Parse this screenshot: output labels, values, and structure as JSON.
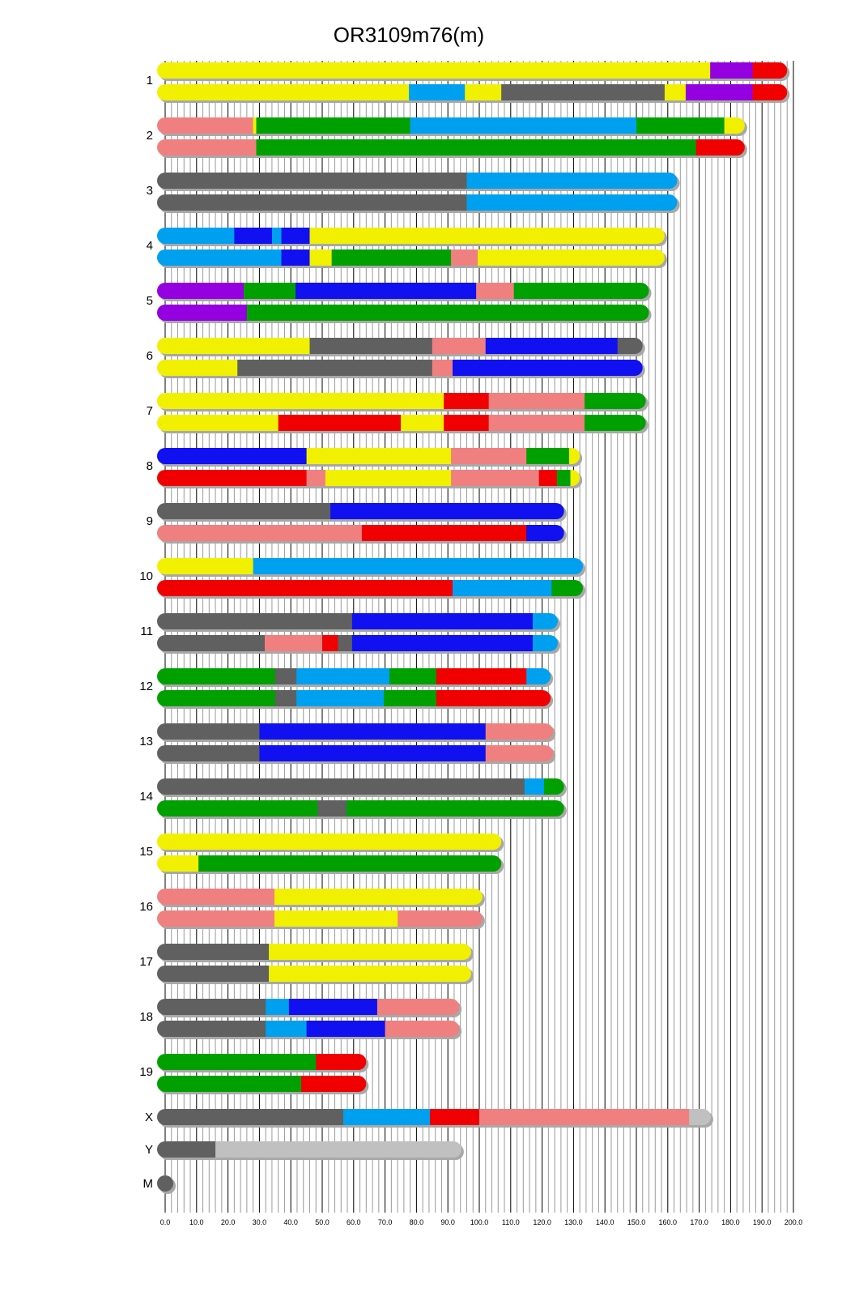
{
  "chart_data": {
    "type": "diagram",
    "title": "OR3109m76(m)",
    "xlim": [
      0,
      200
    ],
    "tick_step": 10,
    "tick_labels": [
      "0.0",
      "10.0",
      "20.0",
      "30.0",
      "40.0",
      "50.0",
      "60.0",
      "70.0",
      "80.0",
      "90.0",
      "100.0",
      "110.0",
      "120.0",
      "130.0",
      "140.0",
      "150.0",
      "160.0",
      "170.0",
      "180.0",
      "190.0",
      "200.0"
    ],
    "colors": {
      "Y": "#f0f000",
      "P": "#9400e0",
      "R": "#f00000",
      "B": "#00a0f0",
      "G": "#606060",
      "N": "#00a000",
      "K": "#f08080",
      "D": "#1010f0",
      "L": "#c0c0c0"
    },
    "chromosomes": [
      {
        "name": "1",
        "homologs": [
          [
            [
              "Y",
              173.5
            ],
            [
              "P",
              187
            ],
            [
              "R",
              198
            ]
          ],
          [
            [
              "Y",
              77.6
            ],
            [
              "B",
              95.4
            ],
            [
              "Y",
              107
            ],
            [
              "G",
              159
            ],
            [
              "Y",
              165.7
            ],
            [
              "P",
              187
            ],
            [
              "R",
              198
            ]
          ]
        ]
      },
      {
        "name": "2",
        "homologs": [
          [
            [
              "K",
              28
            ],
            [
              "Y",
              29
            ],
            [
              "N",
              78
            ],
            [
              "B",
              150
            ],
            [
              "N",
              178
            ],
            [
              "Y",
              184.5
            ]
          ],
          [
            [
              "K",
              29
            ],
            [
              "N",
              169
            ],
            [
              "R",
              184.5
            ]
          ]
        ]
      },
      {
        "name": "3",
        "homologs": [
          [
            [
              "G",
              96
            ],
            [
              "B",
              163
            ]
          ],
          [
            [
              "G",
              96
            ],
            [
              "B",
              163
            ]
          ]
        ]
      },
      {
        "name": "4",
        "homologs": [
          [
            [
              "B",
              22
            ],
            [
              "D",
              34
            ],
            [
              "B",
              37
            ],
            [
              "D",
              46
            ],
            [
              "Y",
              159
            ]
          ],
          [
            [
              "B",
              37
            ],
            [
              "D",
              46
            ],
            [
              "Y",
              53
            ],
            [
              "N",
              91
            ],
            [
              "K",
              99.5
            ],
            [
              "Y",
              159
            ]
          ]
        ]
      },
      {
        "name": "5",
        "homologs": [
          [
            [
              "P",
              25
            ],
            [
              "N",
              41.5
            ],
            [
              "D",
              99
            ],
            [
              "K",
              111
            ],
            [
              "N",
              154
            ]
          ],
          [
            [
              "P",
              26
            ],
            [
              "N",
              154
            ]
          ]
        ]
      },
      {
        "name": "6",
        "homologs": [
          [
            [
              "Y",
              46
            ],
            [
              "G",
              85
            ],
            [
              "K",
              102
            ],
            [
              "D",
              144
            ],
            [
              "G",
              152
            ]
          ],
          [
            [
              "Y",
              23
            ],
            [
              "G",
              85
            ],
            [
              "K",
              91.5
            ],
            [
              "D",
              152
            ]
          ]
        ]
      },
      {
        "name": "7",
        "homologs": [
          [
            [
              "Y",
              88.7
            ],
            [
              "R",
              103
            ],
            [
              "K",
              133.5
            ],
            [
              "N",
              153
            ]
          ],
          [
            [
              "Y",
              36
            ],
            [
              "R",
              75
            ],
            [
              "Y",
              88.7
            ],
            [
              "R",
              103
            ],
            [
              "K",
              133.5
            ],
            [
              "N",
              153
            ]
          ]
        ]
      },
      {
        "name": "8",
        "homologs": [
          [
            [
              "D",
              45
            ],
            [
              "Y",
              91
            ],
            [
              "K",
              115
            ],
            [
              "N",
              128.6
            ],
            [
              "Y",
              132
            ]
          ],
          [
            [
              "R",
              45
            ],
            [
              "K",
              51
            ],
            [
              "Y",
              91
            ],
            [
              "K",
              119
            ],
            [
              "R",
              124.7
            ],
            [
              "N",
              129
            ],
            [
              "Y",
              132
            ]
          ]
        ]
      },
      {
        "name": "9",
        "homologs": [
          [
            [
              "G",
              52.6
            ],
            [
              "D",
              127
            ]
          ],
          [
            [
              "K",
              62.6
            ],
            [
              "R",
              115
            ],
            [
              "D",
              127
            ]
          ]
        ]
      },
      {
        "name": "10",
        "homologs": [
          [
            [
              "Y",
              28
            ],
            [
              "B",
              133
            ]
          ],
          [
            [
              "R",
              91.5
            ],
            [
              "B",
              123
            ],
            [
              "N",
              133
            ]
          ]
        ]
      },
      {
        "name": "11",
        "homologs": [
          [
            [
              "G",
              59.5
            ],
            [
              "D",
              117
            ],
            [
              "B",
              125
            ]
          ],
          [
            [
              "G",
              31.7
            ],
            [
              "K",
              50
            ],
            [
              "R",
              55
            ],
            [
              "G",
              59.5
            ],
            [
              "D",
              117
            ],
            [
              "B",
              125
            ]
          ]
        ]
      },
      {
        "name": "12",
        "homologs": [
          [
            [
              "N",
              35
            ],
            [
              "G",
              41.8
            ],
            [
              "B",
              71.4
            ],
            [
              "N",
              86.3
            ],
            [
              "R",
              115
            ],
            [
              "B",
              122.7
            ]
          ],
          [
            [
              "N",
              35
            ],
            [
              "G",
              41.8
            ],
            [
              "B",
              69.6
            ],
            [
              "N",
              86.3
            ],
            [
              "R",
              122.7
            ]
          ]
        ]
      },
      {
        "name": "13",
        "homologs": [
          [
            [
              "G",
              30
            ],
            [
              "D",
              102
            ],
            [
              "K",
              123.5
            ]
          ],
          [
            [
              "G",
              30
            ],
            [
              "D",
              102
            ],
            [
              "K",
              123.5
            ]
          ]
        ]
      },
      {
        "name": "14",
        "homologs": [
          [
            [
              "G",
              114.4
            ],
            [
              "B",
              120.6
            ],
            [
              "N",
              127
            ]
          ],
          [
            [
              "N",
              48.5
            ],
            [
              "G",
              57.7
            ],
            [
              "N",
              127
            ]
          ]
        ]
      },
      {
        "name": "15",
        "homologs": [
          [
            [
              "Y",
              107
            ]
          ],
          [
            [
              "Y",
              10.6
            ],
            [
              "N",
              107
            ]
          ]
        ]
      },
      {
        "name": "16",
        "homologs": [
          [
            [
              "K",
              34.8
            ],
            [
              "Y",
              101
            ]
          ],
          [
            [
              "K",
              34.8
            ],
            [
              "Y",
              74
            ],
            [
              "K",
              101
            ]
          ]
        ]
      },
      {
        "name": "17",
        "homologs": [
          [
            [
              "G",
              33
            ],
            [
              "Y",
              97.4
            ]
          ],
          [
            [
              "G",
              33
            ],
            [
              "Y",
              97.4
            ]
          ]
        ]
      },
      {
        "name": "18",
        "homologs": [
          [
            [
              "G",
              32
            ],
            [
              "B",
              39.4
            ],
            [
              "D",
              67.5
            ],
            [
              "K",
              93.6
            ]
          ],
          [
            [
              "G",
              32
            ],
            [
              "B",
              45
            ],
            [
              "D",
              70
            ],
            [
              "K",
              93.6
            ]
          ]
        ]
      },
      {
        "name": "19",
        "homologs": [
          [
            [
              "N",
              48
            ],
            [
              "R",
              64
            ]
          ],
          [
            [
              "N",
              43.3
            ],
            [
              "R",
              64
            ]
          ]
        ]
      },
      {
        "name": "X",
        "homologs": [
          [
            [
              "G",
              56.7
            ],
            [
              "B",
              84.3
            ],
            [
              "R",
              100
            ],
            [
              "K",
              166.8
            ],
            [
              "L",
              173.7
            ]
          ]
        ]
      },
      {
        "name": "Y",
        "homologs": [
          [
            [
              "G",
              16
            ],
            [
              "L",
              94.3
            ]
          ]
        ]
      },
      {
        "name": "M",
        "homologs": [
          [
            [
              "G",
              0.02
            ]
          ]
        ]
      }
    ]
  }
}
